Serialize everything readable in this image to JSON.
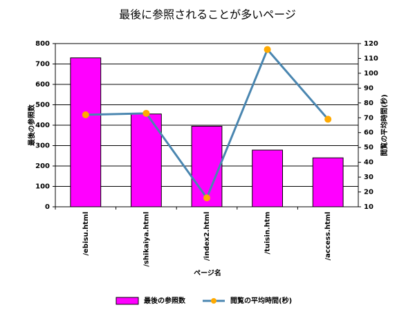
{
  "chart_data": {
    "type": "bar",
    "title": "最後に参照されることが多いページ",
    "x_label": "ページ名",
    "y_label": "最後の参照数",
    "y2_label": "閲覧の平均時間(秒)",
    "categories": [
      "/ebisu.html",
      "/shikaiya.html",
      "/index2.html",
      "/tuisin.htm",
      "/access.html"
    ],
    "series": [
      {
        "name": "最後の参照数",
        "type": "bar",
        "color": "#ff00ff",
        "values": [
          730,
          455,
          395,
          278,
          240
        ]
      },
      {
        "name": "閲覧の平均時間(秒)",
        "type": "line",
        "axis": "y2",
        "color": "#4a86b0",
        "marker_color": "#ffaa00",
        "values": [
          72,
          73,
          16,
          116,
          69
        ]
      }
    ],
    "ylim": [
      0,
      800
    ],
    "yticks": [
      0,
      100,
      200,
      300,
      400,
      500,
      600,
      700,
      800
    ],
    "y2lim": [
      10,
      120
    ],
    "y2ticks": [
      10,
      20,
      30,
      40,
      50,
      60,
      70,
      80,
      90,
      100,
      110,
      120
    ],
    "grid": true,
    "legend": "bottom"
  }
}
